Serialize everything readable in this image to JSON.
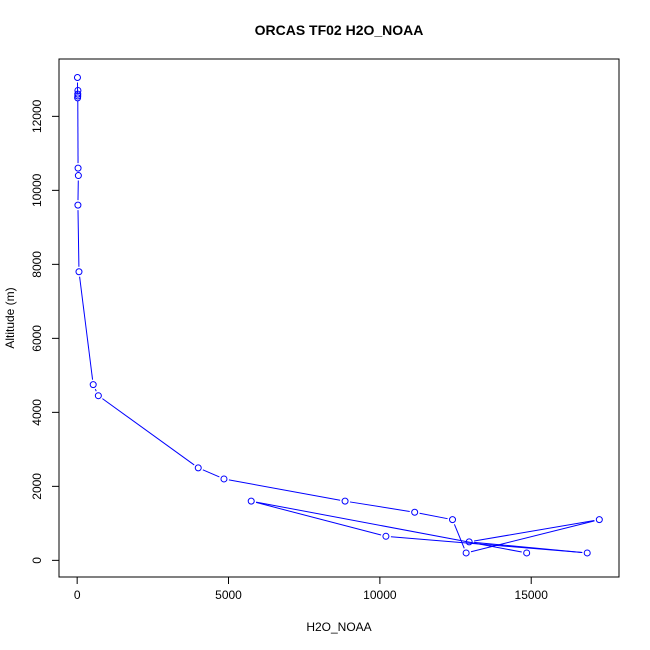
{
  "chart_data": {
    "type": "line",
    "title": "ORCAS TF02 H2O_NOAA",
    "xlabel": "H2O_NOAA",
    "ylabel": "Altitude (m)",
    "xlim": [
      -600,
      17900
    ],
    "ylim": [
      -450,
      13550
    ],
    "x_ticks": [
      0,
      5000,
      10000,
      15000
    ],
    "x_tick_labels": [
      "0",
      "5000",
      "10000",
      "15000"
    ],
    "y_ticks": [
      0,
      2000,
      4000,
      6000,
      8000,
      10000,
      12000
    ],
    "y_tick_labels": [
      "0",
      "2000",
      "4000",
      "6000",
      "8000",
      "10000",
      "12000"
    ],
    "grid": false,
    "series": [
      {
        "color": "#0000ff",
        "marker": "open-circle",
        "x": [
          10,
          15,
          20,
          25,
          20,
          30,
          40,
          25,
          60,
          530,
          700,
          4000,
          4850,
          8850,
          11150,
          12400,
          12850,
          17250,
          12950,
          16850,
          10200,
          5750,
          14850
        ],
        "y": [
          13050,
          12500,
          12600,
          12700,
          12550,
          10600,
          10400,
          9600,
          7800,
          4750,
          4450,
          2500,
          2200,
          1600,
          1300,
          1100,
          200,
          1100,
          500,
          200,
          650,
          1600,
          200
        ]
      }
    ]
  }
}
